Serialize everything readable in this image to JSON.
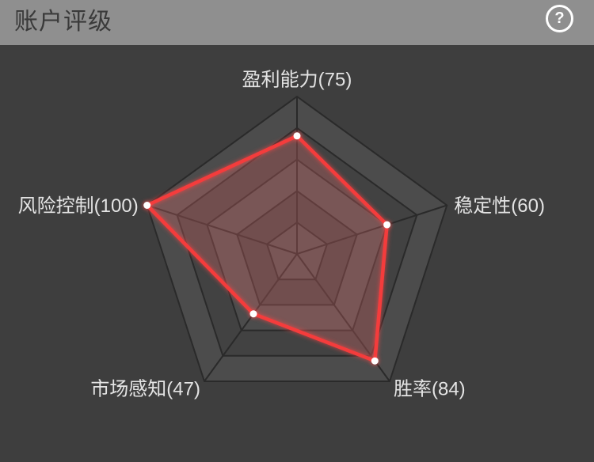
{
  "header": {
    "title": "账户评级",
    "help_label": "?"
  },
  "chart_data": {
    "type": "radar",
    "title": "账户评级",
    "max_value": 100,
    "levels": 5,
    "axes_order": "clockwise-from-top",
    "categories": [
      "盈利能力",
      "稳定性",
      "胜率",
      "市场感知",
      "风险控制"
    ],
    "values": [
      75,
      60,
      84,
      47,
      100
    ],
    "labels": [
      "盈利能力(75)",
      "稳定性(60)",
      "胜率(84)",
      "市场感知(47)",
      "风险控制(100)"
    ],
    "legend": null,
    "grid": "pentagon-rings",
    "colors": {
      "background": "#3e3e3e",
      "header_bg": "#8f8f8f",
      "header_text": "#3a3a3a",
      "ring_light": "#4c4c4c",
      "ring_dark": "#424242",
      "grid_line": "#2a2a2a",
      "data_stroke": "#f43c3c",
      "data_fill": "rgba(255,115,115,0.25)",
      "point_fill": "#ffffff",
      "label_color": "#e4e4e4"
    }
  }
}
